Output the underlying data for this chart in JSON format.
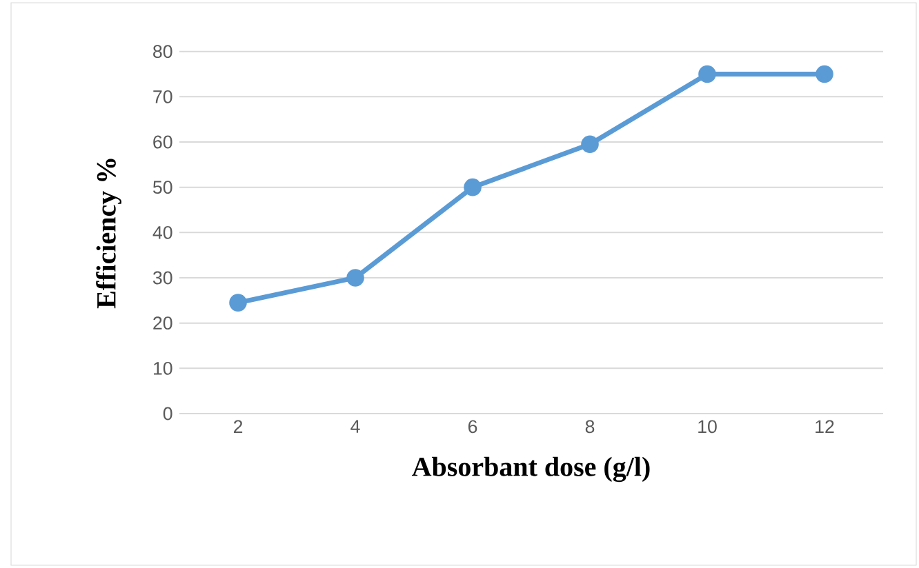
{
  "chart_data": {
    "type": "line",
    "xlabel": "Absorbant dose (g/l)",
    "ylabel": "Efficiency %",
    "categories": [
      "2",
      "4",
      "6",
      "8",
      "10",
      "12"
    ],
    "series": [
      {
        "color": "#5b9bd5",
        "values": [
          24.5,
          30,
          50,
          59.5,
          75,
          75
        ]
      }
    ],
    "ylim": [
      0,
      80
    ],
    "yticks": [
      0,
      10,
      20,
      30,
      40,
      50,
      60,
      70,
      80
    ],
    "grid": "y",
    "marker": "circle",
    "line_style": "solid"
  }
}
